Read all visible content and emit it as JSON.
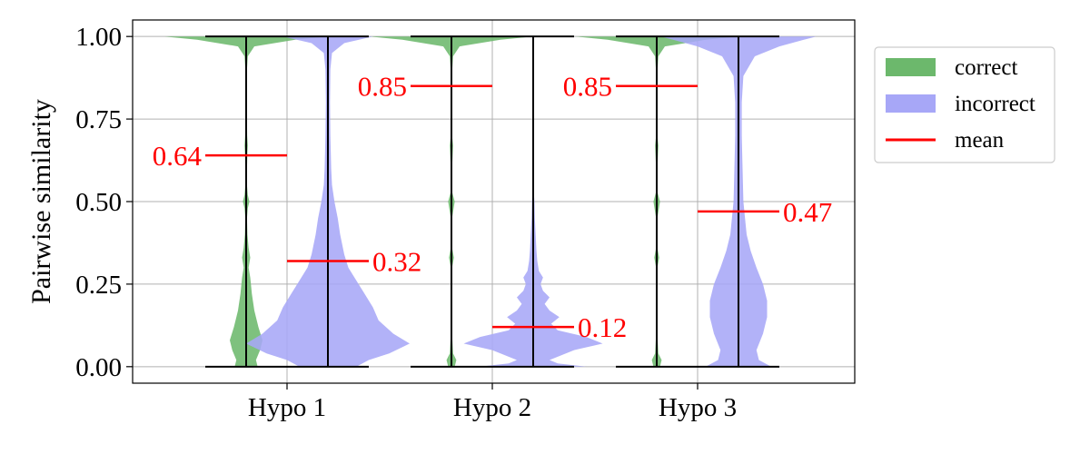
{
  "chart_data": {
    "type": "violin",
    "ylabel": "Pairwise similarity",
    "xlabel": "",
    "categories": [
      "Hypo 1",
      "Hypo 2",
      "Hypo 3"
    ],
    "ylim": [
      -0.05,
      1.05
    ],
    "yticks": [
      0.0,
      0.25,
      0.5,
      0.75,
      1.0
    ],
    "ytick_labels": [
      "0.00",
      "0.25",
      "0.50",
      "0.75",
      "1.00"
    ],
    "grid": true,
    "legend": {
      "placement": "outside-top-right",
      "entries": [
        {
          "label": "correct",
          "color": "#6cb86c"
        },
        {
          "label": "incorrect",
          "color": "#a7a7f7"
        },
        {
          "label": "mean",
          "color": "#ff0000"
        }
      ]
    },
    "series": [
      {
        "name": "correct",
        "color": "#6cb86c",
        "means": [
          0.64,
          0.85,
          0.85
        ],
        "mean_labels": [
          "0.64",
          "0.85",
          "0.85"
        ],
        "ranges": [
          [
            0.0,
            1.0
          ],
          [
            0.0,
            1.0
          ],
          [
            0.0,
            1.0
          ]
        ],
        "density": [
          [
            [
              0.0,
              0.14
            ],
            [
              0.02,
              0.12
            ],
            [
              0.05,
              0.17
            ],
            [
              0.08,
              0.2
            ],
            [
              0.12,
              0.15
            ],
            [
              0.17,
              0.1
            ],
            [
              0.22,
              0.07
            ],
            [
              0.27,
              0.05
            ],
            [
              0.3,
              0.03
            ],
            [
              0.33,
              0.05
            ],
            [
              0.36,
              0.03
            ],
            [
              0.4,
              0.015
            ],
            [
              0.45,
              0.01
            ],
            [
              0.48,
              0.02
            ],
            [
              0.5,
              0.04
            ],
            [
              0.52,
              0.02
            ],
            [
              0.55,
              0.01
            ],
            [
              0.6,
              0.01
            ],
            [
              0.65,
              0.015
            ],
            [
              0.67,
              0.02
            ],
            [
              0.7,
              0.012
            ],
            [
              0.75,
              0.01
            ],
            [
              0.8,
              0.008
            ],
            [
              0.85,
              0.008
            ],
            [
              0.9,
              0.01
            ],
            [
              0.94,
              0.02
            ],
            [
              0.97,
              0.1
            ],
            [
              0.99,
              0.6
            ],
            [
              1.0,
              1.0
            ]
          ],
          [
            [
              0.0,
              0.04
            ],
            [
              0.02,
              0.06
            ],
            [
              0.04,
              0.02
            ],
            [
              0.1,
              0.008
            ],
            [
              0.2,
              0.008
            ],
            [
              0.3,
              0.008
            ],
            [
              0.33,
              0.03
            ],
            [
              0.36,
              0.008
            ],
            [
              0.45,
              0.008
            ],
            [
              0.5,
              0.04
            ],
            [
              0.53,
              0.008
            ],
            [
              0.6,
              0.008
            ],
            [
              0.67,
              0.02
            ],
            [
              0.7,
              0.008
            ],
            [
              0.8,
              0.008
            ],
            [
              0.9,
              0.01
            ],
            [
              0.94,
              0.02
            ],
            [
              0.97,
              0.1
            ],
            [
              0.99,
              0.6
            ],
            [
              1.0,
              1.0
            ]
          ],
          [
            [
              0.0,
              0.04
            ],
            [
              0.02,
              0.06
            ],
            [
              0.04,
              0.02
            ],
            [
              0.1,
              0.008
            ],
            [
              0.2,
              0.008
            ],
            [
              0.3,
              0.008
            ],
            [
              0.33,
              0.03
            ],
            [
              0.36,
              0.008
            ],
            [
              0.45,
              0.008
            ],
            [
              0.5,
              0.04
            ],
            [
              0.53,
              0.008
            ],
            [
              0.6,
              0.008
            ],
            [
              0.67,
              0.02
            ],
            [
              0.7,
              0.008
            ],
            [
              0.8,
              0.008
            ],
            [
              0.9,
              0.01
            ],
            [
              0.94,
              0.02
            ],
            [
              0.97,
              0.1
            ],
            [
              0.99,
              0.6
            ],
            [
              1.0,
              1.0
            ]
          ]
        ]
      },
      {
        "name": "incorrect",
        "color": "#a7a7f7",
        "means": [
          0.32,
          0.12,
          0.47
        ],
        "mean_labels": [
          "0.32",
          "0.12",
          "0.47"
        ],
        "ranges": [
          [
            0.0,
            1.0
          ],
          [
            0.0,
            1.0
          ],
          [
            0.0,
            1.0
          ]
        ],
        "density": [
          [
            [
              0.0,
              0.35
            ],
            [
              0.02,
              0.5
            ],
            [
              0.04,
              0.75
            ],
            [
              0.07,
              1.0
            ],
            [
              0.1,
              0.8
            ],
            [
              0.14,
              0.62
            ],
            [
              0.18,
              0.55
            ],
            [
              0.22,
              0.45
            ],
            [
              0.26,
              0.35
            ],
            [
              0.3,
              0.25
            ],
            [
              0.34,
              0.2
            ],
            [
              0.4,
              0.15
            ],
            [
              0.45,
              0.12
            ],
            [
              0.5,
              0.08
            ],
            [
              0.55,
              0.05
            ],
            [
              0.6,
              0.04
            ],
            [
              0.7,
              0.03
            ],
            [
              0.8,
              0.025
            ],
            [
              0.9,
              0.03
            ],
            [
              0.95,
              0.05
            ],
            [
              0.98,
              0.2
            ],
            [
              1.0,
              0.55
            ]
          ],
          [
            [
              0.0,
              0.65
            ],
            [
              0.01,
              0.3
            ],
            [
              0.02,
              0.2
            ],
            [
              0.05,
              0.5
            ],
            [
              0.07,
              0.85
            ],
            [
              0.09,
              0.65
            ],
            [
              0.11,
              0.3
            ],
            [
              0.13,
              0.22
            ],
            [
              0.15,
              0.32
            ],
            [
              0.17,
              0.2
            ],
            [
              0.19,
              0.14
            ],
            [
              0.21,
              0.2
            ],
            [
              0.23,
              0.12
            ],
            [
              0.25,
              0.09
            ],
            [
              0.27,
              0.12
            ],
            [
              0.29,
              0.07
            ],
            [
              0.32,
              0.05
            ],
            [
              0.35,
              0.04
            ],
            [
              0.4,
              0.03
            ],
            [
              0.45,
              0.02
            ],
            [
              0.5,
              0.015
            ],
            [
              0.55,
              0.0
            ]
          ],
          [
            [
              0.0,
              0.4
            ],
            [
              0.02,
              0.25
            ],
            [
              0.05,
              0.22
            ],
            [
              0.1,
              0.3
            ],
            [
              0.15,
              0.35
            ],
            [
              0.2,
              0.35
            ],
            [
              0.25,
              0.3
            ],
            [
              0.3,
              0.22
            ],
            [
              0.35,
              0.15
            ],
            [
              0.4,
              0.1
            ],
            [
              0.45,
              0.08
            ],
            [
              0.5,
              0.06
            ],
            [
              0.6,
              0.05
            ],
            [
              0.7,
              0.04
            ],
            [
              0.8,
              0.04
            ],
            [
              0.88,
              0.06
            ],
            [
              0.94,
              0.2
            ],
            [
              0.97,
              0.5
            ],
            [
              0.99,
              0.8
            ],
            [
              1.0,
              0.95
            ]
          ]
        ]
      }
    ]
  }
}
